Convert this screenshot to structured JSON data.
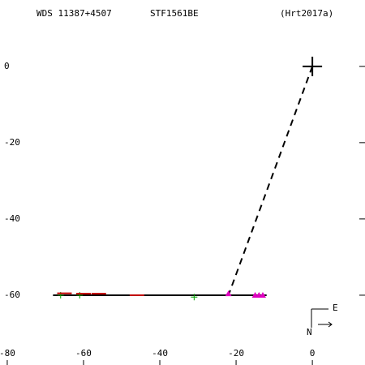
{
  "chart_data": {
    "type": "scatter",
    "title": "WDS 11387+4507",
    "subtitle": "STF1561BE",
    "reference": "(Hrt2017a)",
    "xlim": [
      -81.9,
      13.8
    ],
    "ylim": [
      -78.3,
      17.4
    ],
    "xticks": [
      -80,
      -60,
      -40,
      -20,
      0
    ],
    "yticks": [
      0,
      -20,
      -40,
      -60
    ],
    "series": [
      {
        "marker": "bigcross",
        "color": "#000000",
        "x": [
          0
        ],
        "values": [
          0
        ]
      },
      {
        "marker": "cross",
        "color": "#00a000",
        "x": [
          -66,
          -61,
          -31
        ],
        "values": [
          -60,
          -60,
          -60.5
        ]
      },
      {
        "marker": "dash",
        "color": "#c00000",
        "x": [
          -65,
          -60,
          -56,
          -46
        ],
        "values": [
          -59.5,
          -59.6,
          -59.6,
          -60
        ]
      },
      {
        "marker": "triangle",
        "color": "#e000c0",
        "x": [
          -22,
          -15,
          -14,
          -13
        ],
        "values": [
          -59.6,
          -60,
          -60,
          -60
        ]
      }
    ],
    "lines": [
      {
        "dash": true,
        "color": "#000000",
        "x": [
          0,
          -22
        ],
        "values": [
          0,
          -60
        ]
      },
      {
        "dash": false,
        "color": "#000000",
        "x": [
          -68,
          -12
        ],
        "values": [
          -60,
          -60
        ]
      }
    ],
    "compass": {
      "north": "N",
      "east": "E"
    }
  }
}
